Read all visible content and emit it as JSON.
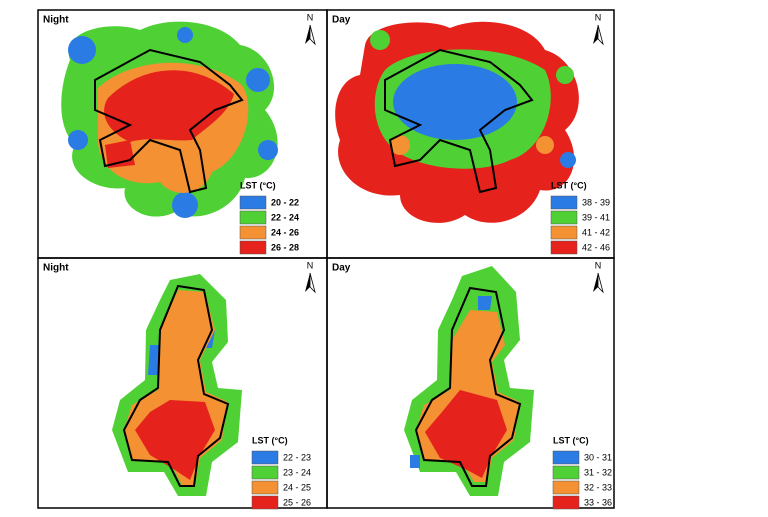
{
  "panels": [
    {
      "title": "Night",
      "north": "N",
      "legend": {
        "title": "LST (°C)",
        "items": [
          {
            "label": "20 - 22",
            "color": "#2b7be4"
          },
          {
            "label": "22 - 24",
            "color": "#4fd135"
          },
          {
            "label": "24 - 26",
            "color": "#f39133"
          },
          {
            "label": "26 - 28",
            "color": "#e5221c"
          }
        ]
      }
    },
    {
      "title": "Day",
      "north": "N",
      "legend": {
        "title": "LST (°C)",
        "items": [
          {
            "label": "38 - 39",
            "color": "#2b7be4"
          },
          {
            "label": "39 - 41",
            "color": "#4fd135"
          },
          {
            "label": "41 - 42",
            "color": "#f39133"
          },
          {
            "label": "42 - 46",
            "color": "#e5221c"
          }
        ]
      }
    },
    {
      "title": "Night",
      "north": "N",
      "legend": {
        "title": "LST (°C)",
        "items": [
          {
            "label": "22 - 23",
            "color": "#2b7be4"
          },
          {
            "label": "23 - 24",
            "color": "#4fd135"
          },
          {
            "label": "24 - 25",
            "color": "#f39133"
          },
          {
            "label": "25 - 26",
            "color": "#e5221c"
          }
        ]
      }
    },
    {
      "title": "Day",
      "north": "N",
      "legend": {
        "title": "LST (°C)",
        "items": [
          {
            "label": "30 - 31",
            "color": "#2b7be4"
          },
          {
            "label": "31 - 32",
            "color": "#4fd135"
          },
          {
            "label": "32 - 33",
            "color": "#f39133"
          },
          {
            "label": "33 - 36",
            "color": "#e5221c"
          }
        ]
      }
    }
  ]
}
